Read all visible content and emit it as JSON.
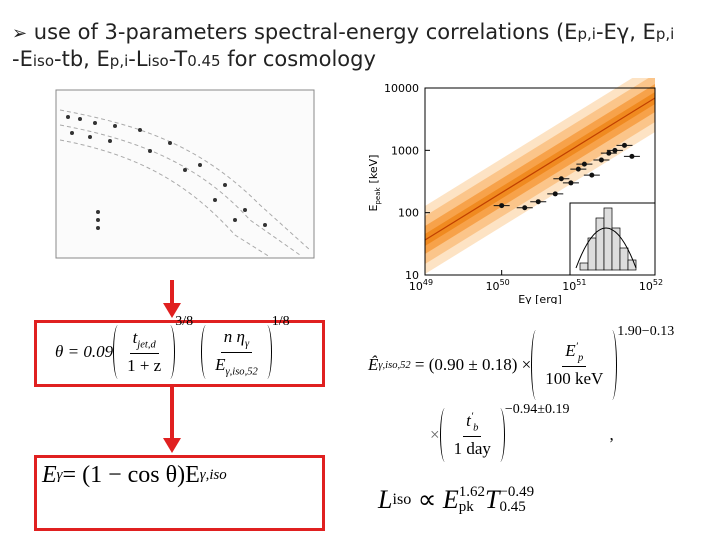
{
  "title": {
    "bullet": "➢",
    "line1": [
      "use of 3-parameters spectral-energy correlations (E",
      "p,i",
      "-Eγ, E",
      "p,i"
    ],
    "line2": [
      "-E",
      "iso",
      "-tb, E",
      "p,i",
      "-L",
      "iso",
      "-T",
      "0.45",
      " for cosmology"
    ]
  },
  "right_plot": {
    "type": "scatter",
    "xlim": [
      1e+49,
      1e+52
    ],
    "ylim": [
      10,
      10000
    ],
    "log_x": true,
    "log_y": true,
    "xticks": [
      {
        "value": 1e+49,
        "label": "10",
        "exponent": "49"
      },
      {
        "value": 1e+50,
        "label": "10",
        "exponent": "50"
      },
      {
        "value": 1e+51,
        "label": "10",
        "exponent": "51"
      },
      {
        "value": 1e+52,
        "label": "10",
        "exponent": "52"
      }
    ],
    "yticks": [
      10,
      100,
      1000,
      10000
    ],
    "xlabel": "Eγ [erg]",
    "ylabel": "E",
    "ylabel_sub": "peak",
    "ylabel_unit": "[keV]",
    "color": "#111",
    "x": [
      1e+50,
      2e+50,
      3e+50,
      5e+50,
      6e+50,
      8e+50,
      1e+51,
      1.2e+51,
      1.5e+51,
      2e+51,
      2.5e+51,
      3e+51,
      4e+51,
      5e+51
    ],
    "values": [
      130,
      120,
      150,
      200,
      350,
      300,
      500,
      600,
      400,
      700,
      900,
      1000,
      1200,
      800
    ]
  },
  "formula1": {
    "theta": "θ = 0.09",
    "n1": "t",
    "n1_sub": "jet,d",
    "d1": "1 + z",
    "exp1": "3/8",
    "n2": "n η",
    "n2_sub": "γ",
    "d2": "E",
    "d2_sub": "γ,iso,52",
    "exp2": "1/8"
  },
  "formula2": {
    "lhs": "E",
    "lhs_sub": "γ",
    "mid": " = (1 − cos θ)E",
    "rhs_sub": "γ,iso"
  },
  "formula3": {
    "lhs": "Ê",
    "lhs_sub": "γ,iso,52",
    "eq": "= (0.90 ± 0.18) ×",
    "num": "E",
    "num_sup": "′",
    "num_sub": "p",
    "den": "100 keV",
    "exp": "1.90−0.13"
  },
  "formula4": {
    "times": "×",
    "num": "t",
    "num_sup": "′",
    "num_sub": "b",
    "den": "1 day",
    "exp": "−0.94±0.19",
    "comma": ","
  },
  "formula5": {
    "lhs": "L",
    "lhs_sub": "iso",
    "prop": "∝",
    "e": "E",
    "e_sup": "1.62",
    "e_sub": "pk",
    "t": "T",
    "t_sup": "−0.49",
    "t_sub": "0.45"
  }
}
